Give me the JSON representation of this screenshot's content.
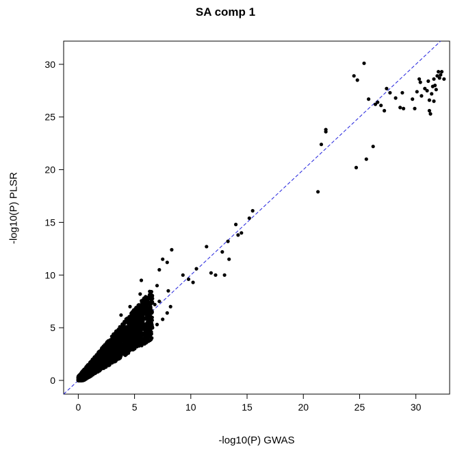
{
  "chart_data": {
    "type": "scatter",
    "title": "SA comp 1",
    "xlabel": "-log10(P) GWAS",
    "ylabel": "-log10(P) PLSR",
    "xlim": [
      -1.3,
      33
    ],
    "ylim": [
      -1.3,
      32.2
    ],
    "xticks": [
      0,
      5,
      10,
      15,
      20,
      25,
      30
    ],
    "yticks": [
      0,
      5,
      10,
      15,
      20,
      25,
      30
    ],
    "grid": false,
    "legend": "none",
    "reference_line": {
      "type": "y=x",
      "style": "dashed",
      "color": "#1f1fdd"
    },
    "point_color": "#000000",
    "series": [
      {
        "points": [
          [
            0.2,
            0.3
          ],
          [
            0.4,
            0.2
          ],
          [
            0.5,
            0.5
          ],
          [
            0.6,
            0.4
          ],
          [
            0.8,
            0.7
          ],
          [
            0.9,
            0.5
          ],
          [
            1.0,
            1.0
          ],
          [
            1.1,
            0.8
          ],
          [
            1.2,
            1.3
          ],
          [
            1.3,
            0.9
          ],
          [
            1.4,
            1.6
          ],
          [
            1.5,
            1.1
          ],
          [
            1.6,
            1.8
          ],
          [
            1.7,
            1.2
          ],
          [
            1.8,
            2.0
          ],
          [
            1.9,
            1.4
          ],
          [
            2.0,
            2.2
          ],
          [
            2.1,
            1.5
          ],
          [
            2.2,
            2.6
          ],
          [
            2.3,
            1.7
          ],
          [
            2.4,
            2.9
          ],
          [
            2.5,
            1.9
          ],
          [
            2.6,
            3.1
          ],
          [
            2.7,
            2.0
          ],
          [
            2.8,
            3.3
          ],
          [
            2.9,
            2.2
          ],
          [
            3.0,
            3.6
          ],
          [
            3.1,
            2.3
          ],
          [
            3.2,
            3.8
          ],
          [
            3.3,
            2.5
          ],
          [
            3.4,
            4.0
          ],
          [
            3.5,
            2.6
          ],
          [
            3.6,
            4.3
          ],
          [
            3.7,
            2.8
          ],
          [
            3.8,
            4.5
          ],
          [
            3.9,
            3.0
          ],
          [
            4.0,
            4.8
          ],
          [
            4.2,
            3.2
          ],
          [
            4.4,
            5.0
          ],
          [
            4.6,
            3.5
          ],
          [
            4.8,
            5.3
          ],
          [
            5.0,
            3.8
          ],
          [
            5.2,
            5.6
          ],
          [
            5.4,
            4.0
          ],
          [
            5.6,
            6.0
          ],
          [
            5.8,
            4.3
          ],
          [
            6.0,
            6.3
          ],
          [
            6.2,
            4.6
          ],
          [
            6.4,
            6.8
          ],
          [
            6.6,
            5.0
          ],
          [
            6.8,
            7.2
          ],
          [
            7.0,
            5.3
          ],
          [
            7.2,
            7.5
          ],
          [
            7.5,
            5.8
          ],
          [
            7.9,
            6.4
          ],
          [
            8.2,
            7.0
          ],
          [
            3.8,
            6.2
          ],
          [
            4.6,
            7.0
          ],
          [
            5.5,
            8.2
          ],
          [
            5.6,
            9.5
          ],
          [
            7.0,
            9.0
          ],
          [
            7.2,
            10.5
          ],
          [
            7.5,
            11.5
          ],
          [
            7.9,
            11.2
          ],
          [
            8.3,
            12.4
          ],
          [
            8.0,
            8.5
          ],
          [
            9.3,
            10.0
          ],
          [
            9.8,
            9.6
          ],
          [
            10.2,
            9.3
          ],
          [
            10.5,
            10.6
          ],
          [
            11.4,
            12.7
          ],
          [
            11.8,
            10.2
          ],
          [
            12.2,
            10.0
          ],
          [
            12.8,
            12.2
          ],
          [
            13.0,
            10.0
          ],
          [
            13.3,
            13.2
          ],
          [
            13.4,
            11.5
          ],
          [
            14.0,
            14.8
          ],
          [
            14.2,
            13.8
          ],
          [
            14.5,
            14.0
          ],
          [
            15.2,
            15.4
          ],
          [
            15.5,
            16.1
          ],
          [
            21.3,
            17.9
          ],
          [
            21.6,
            22.4
          ],
          [
            22.0,
            23.8
          ],
          [
            22.0,
            23.6
          ],
          [
            24.5,
            28.9
          ],
          [
            24.8,
            28.5
          ],
          [
            24.7,
            20.2
          ],
          [
            25.4,
            30.1
          ],
          [
            25.6,
            21.0
          ],
          [
            25.8,
            26.7
          ],
          [
            26.2,
            22.2
          ],
          [
            26.4,
            26.2
          ],
          [
            26.6,
            26.4
          ],
          [
            26.9,
            26.1
          ],
          [
            27.2,
            25.6
          ],
          [
            27.4,
            27.7
          ],
          [
            27.7,
            27.3
          ],
          [
            28.2,
            26.8
          ],
          [
            28.6,
            25.9
          ],
          [
            28.8,
            27.3
          ],
          [
            28.9,
            25.8
          ],
          [
            29.7,
            26.7
          ],
          [
            29.9,
            25.8
          ],
          [
            30.1,
            27.4
          ],
          [
            30.3,
            28.6
          ],
          [
            30.4,
            28.3
          ],
          [
            30.5,
            27.0
          ],
          [
            30.8,
            27.7
          ],
          [
            31.0,
            27.5
          ],
          [
            31.1,
            28.4
          ],
          [
            31.2,
            25.6
          ],
          [
            31.3,
            25.3
          ],
          [
            31.4,
            27.2
          ],
          [
            31.5,
            27.9
          ],
          [
            31.6,
            28.6
          ],
          [
            31.7,
            28.0
          ],
          [
            31.8,
            27.6
          ],
          [
            31.9,
            28.9
          ],
          [
            32.0,
            29.3
          ],
          [
            32.1,
            28.7
          ],
          [
            32.2,
            29.0
          ],
          [
            32.3,
            29.3
          ],
          [
            32.5,
            28.6
          ],
          [
            31.2,
            26.6
          ],
          [
            31.6,
            26.5
          ]
        ]
      }
    ]
  }
}
